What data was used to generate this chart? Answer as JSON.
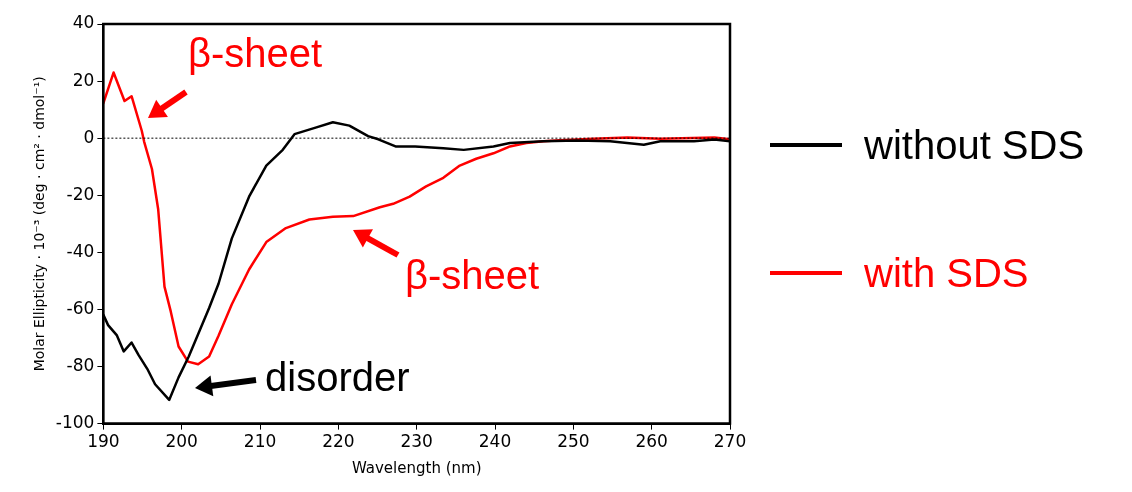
{
  "chart_data": {
    "type": "line",
    "xlabel": "Wavelength (nm)",
    "ylabel": "Molar Ellipticity · 10⁻³ (deg · cm² · dmol⁻¹)",
    "xlim": [
      190,
      270
    ],
    "xticks": [
      190,
      200,
      210,
      220,
      230,
      240,
      250,
      260,
      270
    ],
    "ylim": [
      -100,
      40
    ],
    "yticks": [
      -100,
      -80,
      -60,
      -40,
      -20,
      0,
      20,
      40
    ],
    "grid": false,
    "legend": "right",
    "marker": "none",
    "line_style": "solid",
    "ref_lines": [
      {
        "axis": "y",
        "value": 0,
        "color": "#000000",
        "line_style": "dotted"
      }
    ],
    "annotations": [
      "β-sheet",
      "β-sheet",
      "disorder"
    ],
    "series": [
      {
        "name": "without SDS",
        "color": "#000000",
        "x": [
          190,
          190.6,
          191.7,
          192.6,
          193.6,
          194.5,
          195.6,
          196.6,
          198.4,
          199.6,
          200.9,
          202.2,
          203.5,
          204.7,
          206.4,
          208.6,
          210.8,
          212.9,
          214.4,
          217.2,
          219.3,
          221.4,
          223.8,
          225.1,
          227.3,
          229.8,
          233.4,
          236,
          239.8,
          241.9,
          246.2,
          250.5,
          254.7,
          259,
          261.1,
          265.4,
          268,
          270
        ],
        "values": [
          -61.9,
          -65.5,
          -69,
          -74.7,
          -71.6,
          -76,
          -80.8,
          -86.2,
          -91.7,
          -83.8,
          -76.5,
          -68,
          -59.5,
          -51,
          -35.1,
          -20.5,
          -9.6,
          -4.1,
          1.4,
          3.8,
          5.6,
          4.4,
          0.7,
          -0.4,
          -2.9,
          -2.9,
          -3.5,
          -4.1,
          -2.9,
          -1.7,
          -1.1,
          -0.8,
          -1.1,
          -2.3,
          -1.1,
          -1.1,
          -0.5,
          -1.1
        ]
      },
      {
        "name": "with SDS",
        "color": "#ff0000",
        "x": [
          190,
          191.3,
          192.7,
          193.6,
          194.9,
          195.2,
          196.2,
          197,
          197.8,
          198.6,
          199.6,
          200.8,
          202.1,
          203.5,
          204.7,
          206.4,
          208.6,
          210.8,
          213.3,
          216.3,
          219.3,
          221.9,
          225.3,
          227,
          229.1,
          231.2,
          233.4,
          235.5,
          237.6,
          239.8,
          241.9,
          244,
          246.2,
          248.3,
          252.6,
          256.9,
          261.1,
          268,
          270
        ],
        "values": [
          12.3,
          23,
          13,
          14.7,
          2.6,
          -1.2,
          -10.8,
          -25,
          -52,
          -60.7,
          -73,
          -78.3,
          -79.2,
          -76.5,
          -69.2,
          -58.2,
          -46,
          -36.4,
          -31.5,
          -28.5,
          -27.5,
          -27.3,
          -24.2,
          -23,
          -20.5,
          -16.9,
          -13.9,
          -9.6,
          -7.2,
          -5.3,
          -2.9,
          -1.7,
          -1.1,
          -0.7,
          -0.2,
          0.2,
          -0.2,
          0.2,
          -0.4
        ]
      }
    ]
  }
}
